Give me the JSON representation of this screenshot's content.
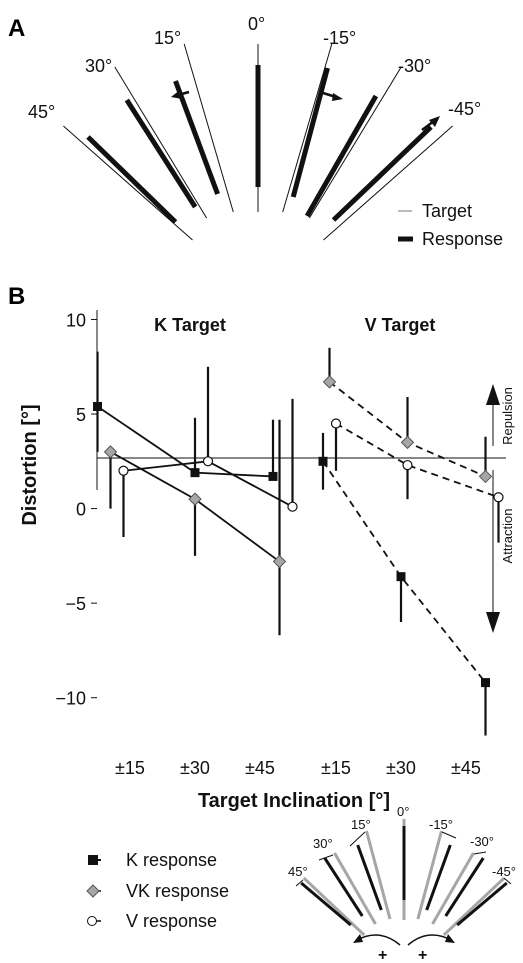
{
  "panel_a": {
    "label": "A",
    "angles": [
      "45°",
      "30°",
      "15°",
      "0°",
      "-15°",
      "-30°",
      "-45°"
    ],
    "legend": {
      "target": "Target",
      "response": "Response"
    }
  },
  "panel_b": {
    "label": "B"
  },
  "chart_data": {
    "type": "line",
    "ylabel": "Distortion [°]",
    "xlabel": "Target Inclination [°]",
    "ylim": [
      -12.5,
      10.5
    ],
    "yticks": [
      10,
      5,
      0,
      -5,
      -10
    ],
    "ytick_labels": [
      "10",
      "5",
      "0",
      "−5",
      "−10"
    ],
    "groups": [
      {
        "title": "K Target",
        "categories": [
          "±15",
          "±30",
          "±45"
        ],
        "series": [
          {
            "name": "K response",
            "x": [
              -0.5,
              1.0,
              2.2
            ],
            "values": [
              5.4,
              1.9,
              1.7
            ],
            "err_hi": [
              8.3,
              4.8,
              4.7
            ],
            "err_lo": [
              3.0,
              1.9,
              1.7
            ]
          },
          {
            "name": "VK response",
            "x": [
              -0.3,
              1.0,
              2.3
            ],
            "values": [
              3.0,
              0.5,
              -2.8
            ],
            "err_hi": [
              3.0,
              0.5,
              4.7
            ],
            "err_lo": [
              0.0,
              -2.5,
              -6.7
            ]
          },
          {
            "name": "V response",
            "x": [
              -0.1,
              1.2,
              2.5
            ],
            "values": [
              2.0,
              2.5,
              0.1
            ],
            "err_hi": [
              2.0,
              7.5,
              5.8
            ],
            "err_lo": [
              -1.5,
              2.5,
              0.1
            ]
          }
        ]
      },
      {
        "title": "V Target",
        "categories": [
          "±15",
          "±30",
          "±45"
        ],
        "series": [
          {
            "name": "K response",
            "x": [
              -0.2,
              1.0,
              2.3
            ],
            "values": [
              2.5,
              -3.6,
              -9.2
            ],
            "err_hi": [
              4.0,
              -3.6,
              -9.2
            ],
            "err_lo": [
              1.0,
              -6.0,
              -12.0
            ]
          },
          {
            "name": "VK response",
            "x": [
              -0.1,
              1.1,
              2.3
            ],
            "values": [
              6.7,
              3.5,
              1.7
            ],
            "err_hi": [
              8.5,
              5.9,
              3.8
            ],
            "err_lo": [
              6.7,
              3.5,
              1.7
            ]
          },
          {
            "name": "V response",
            "x": [
              0.0,
              1.1,
              2.5
            ],
            "values": [
              4.5,
              2.3,
              0.6
            ],
            "err_hi": [
              4.5,
              2.3,
              0.6
            ],
            "err_lo": [
              2.0,
              0.5,
              -1.8
            ]
          }
        ]
      }
    ],
    "annotations": {
      "repulsion": "Repulsion",
      "attraction": "Attraction"
    },
    "legend": [
      {
        "label": "K response",
        "marker": "square",
        "color": "#111111"
      },
      {
        "label": "VK response",
        "marker": "diamond",
        "color": "#a6a6a6"
      },
      {
        "label": "V response",
        "marker": "circle",
        "color": "#ffffff"
      }
    ]
  },
  "inset": {
    "labels": [
      "45°",
      "30°",
      "15°",
      "0°",
      "-15°",
      "-30°",
      "-45°"
    ],
    "signs": [
      "+",
      "+"
    ]
  },
  "colors": {
    "response": "#111111",
    "target": "#a6a6a6",
    "vk_fill": "#a6a6a6"
  }
}
